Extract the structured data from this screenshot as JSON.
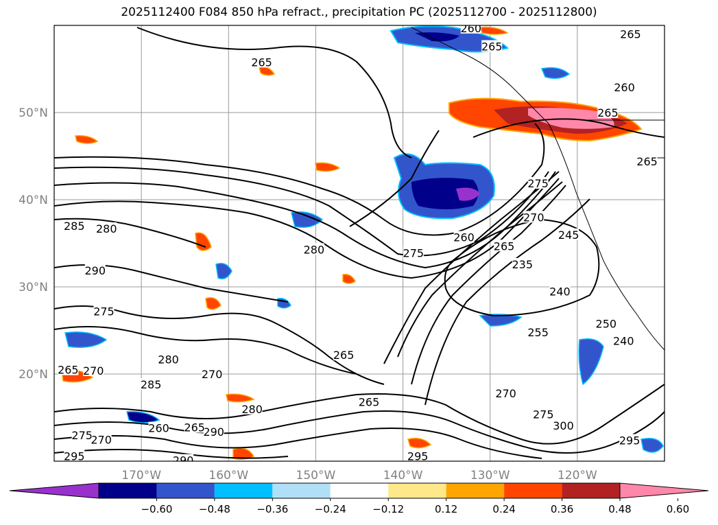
{
  "title": "2025112400 F084 850 hPa refract., precipitation PC (2025112700 - 2025112800)",
  "chart_data": {
    "type": "heatmap",
    "map_extent": {
      "lon": [
        -180,
        -110
      ],
      "lat": [
        10,
        60
      ]
    },
    "x_ticks": [
      {
        "value": -170,
        "label": "170°W"
      },
      {
        "value": -160,
        "label": "160°W"
      },
      {
        "value": -150,
        "label": "150°W"
      },
      {
        "value": -140,
        "label": "140°W"
      },
      {
        "value": -130,
        "label": "130°W"
      },
      {
        "value": -120,
        "label": "120°W"
      }
    ],
    "y_ticks": [
      {
        "value": 20,
        "label": "20°N"
      },
      {
        "value": 30,
        "label": "30°N"
      },
      {
        "value": 40,
        "label": "40°N"
      },
      {
        "value": 50,
        "label": "50°N"
      }
    ],
    "grid": true,
    "colorbar": {
      "ticks": [
        "−0.60",
        "−0.48",
        "−0.36",
        "−0.24",
        "−0.12",
        "0.12",
        "0.24",
        "0.36",
        "0.48",
        "0.60"
      ],
      "colors": [
        "#9932CC",
        "#00008B",
        "#3355CC",
        "#00BFFF",
        "#B0E0F8",
        "#FFFFFF",
        "#FFE88A",
        "#FFA500",
        "#FF4500",
        "#B22222",
        "#FF88AA"
      ],
      "extend": "both"
    },
    "contour_labels": [
      {
        "text": "265",
        "lon": -129.8,
        "lat": 57.6
      },
      {
        "text": "265",
        "lon": -113.9,
        "lat": 59.0
      },
      {
        "text": "260",
        "lon": -132.2,
        "lat": 59.7
      },
      {
        "text": "260",
        "lon": -114.6,
        "lat": 52.9
      },
      {
        "text": "265",
        "lon": -116.5,
        "lat": 50.0
      },
      {
        "text": "265",
        "lon": -156.2,
        "lat": 55.8
      },
      {
        "text": "265",
        "lon": -112.0,
        "lat": 44.4
      },
      {
        "text": "285",
        "lon": -177.7,
        "lat": 37.0
      },
      {
        "text": "280",
        "lon": -174.0,
        "lat": 36.7
      },
      {
        "text": "280",
        "lon": -150.2,
        "lat": 34.3
      },
      {
        "text": "290",
        "lon": -175.3,
        "lat": 31.9
      },
      {
        "text": "275",
        "lon": -174.3,
        "lat": 27.2
      },
      {
        "text": "260",
        "lon": -133.0,
        "lat": 35.7
      },
      {
        "text": "275",
        "lon": -138.8,
        "lat": 33.9
      },
      {
        "text": "265",
        "lon": -128.4,
        "lat": 34.7
      },
      {
        "text": "235",
        "lon": -126.3,
        "lat": 32.6
      },
      {
        "text": "275",
        "lon": -124.5,
        "lat": 41.9
      },
      {
        "text": "270",
        "lon": -125.0,
        "lat": 38.0
      },
      {
        "text": "245",
        "lon": -121.0,
        "lat": 36.0
      },
      {
        "text": "240",
        "lon": -122.0,
        "lat": 29.5
      },
      {
        "text": "255",
        "lon": -124.5,
        "lat": 24.8
      },
      {
        "text": "250",
        "lon": -116.7,
        "lat": 25.8
      },
      {
        "text": "240",
        "lon": -114.7,
        "lat": 23.8
      },
      {
        "text": "265",
        "lon": -178.4,
        "lat": 20.5
      },
      {
        "text": "270",
        "lon": -175.5,
        "lat": 20.4
      },
      {
        "text": "280",
        "lon": -166.9,
        "lat": 21.7
      },
      {
        "text": "285",
        "lon": -168.9,
        "lat": 18.8
      },
      {
        "text": "270",
        "lon": -161.9,
        "lat": 20.0
      },
      {
        "text": "265",
        "lon": -146.8,
        "lat": 22.2
      },
      {
        "text": "265",
        "lon": -143.9,
        "lat": 16.8
      },
      {
        "text": "280",
        "lon": -157.3,
        "lat": 16.0
      },
      {
        "text": "290",
        "lon": -161.7,
        "lat": 13.4
      },
      {
        "text": "265",
        "lon": -163.9,
        "lat": 13.9
      },
      {
        "text": "260",
        "lon": -168.0,
        "lat": 13.8
      },
      {
        "text": "270",
        "lon": -174.6,
        "lat": 12.5
      },
      {
        "text": "275",
        "lon": -176.8,
        "lat": 13.0
      },
      {
        "text": "295",
        "lon": -177.7,
        "lat": 10.6
      },
      {
        "text": "290",
        "lon": -165.2,
        "lat": 10.1
      },
      {
        "text": "295",
        "lon": -138.3,
        "lat": 10.6
      },
      {
        "text": "270",
        "lon": -128.2,
        "lat": 17.8
      },
      {
        "text": "275",
        "lon": -123.9,
        "lat": 15.4
      },
      {
        "text": "300",
        "lon": -121.6,
        "lat": 14.1
      },
      {
        "text": "295",
        "lon": -114.0,
        "lat": 12.4
      }
    ]
  }
}
